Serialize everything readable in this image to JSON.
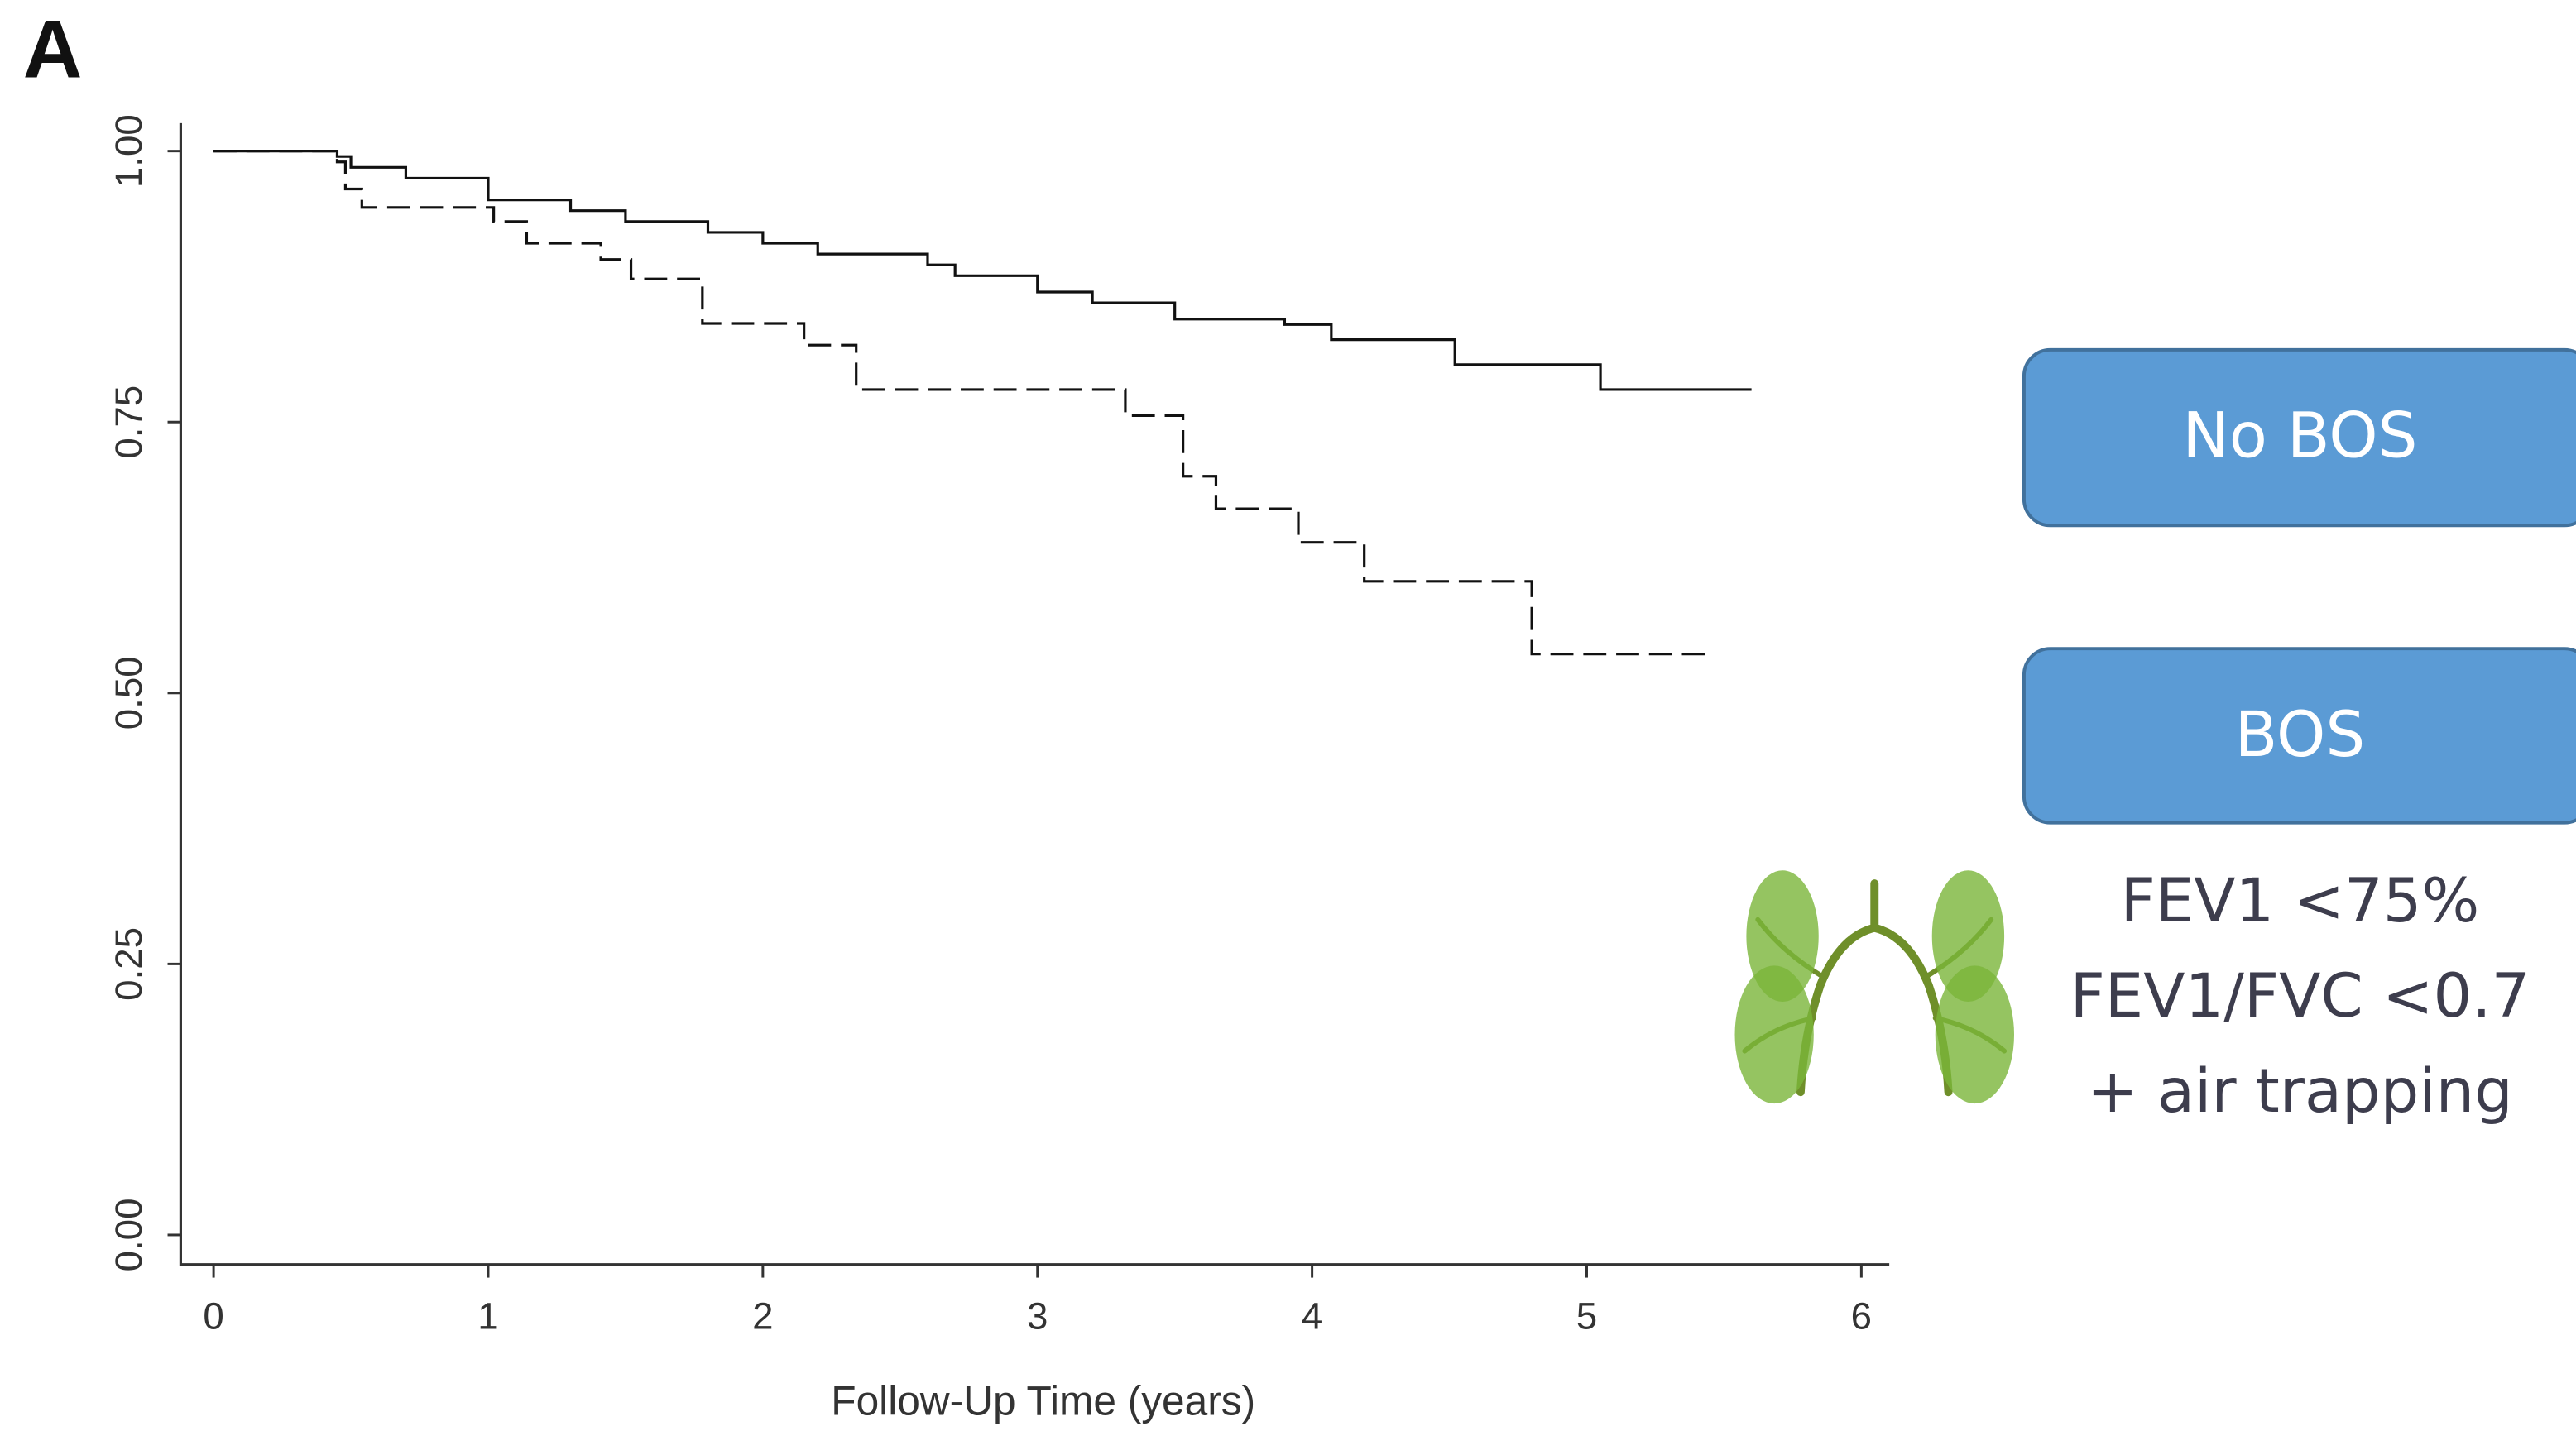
{
  "chart_data": {
    "type": "line",
    "step": "post",
    "panel_label": "A",
    "xlabel": "Follow-Up Time (years)",
    "xlim": [
      0,
      6
    ],
    "xticks": [
      0,
      1,
      2,
      3,
      4,
      5,
      6
    ],
    "ylim": [
      0,
      1
    ],
    "yticks": [
      {
        "value": 0,
        "label": "0.00"
      },
      {
        "value": 0.25,
        "label": "0.25"
      },
      {
        "value": 0.5,
        "label": "0.50"
      },
      {
        "value": 0.75,
        "label": "0.75"
      },
      {
        "value": 1,
        "label": "1.00"
      }
    ],
    "series": [
      {
        "name": "No BOS",
        "color": "#111111",
        "dash": false,
        "x": [
          0,
          0.45,
          0.5,
          0.7,
          1.0,
          1.3,
          1.5,
          1.8,
          2.0,
          2.2,
          2.6,
          2.7,
          3.0,
          3.2,
          3.5,
          3.9,
          4.07,
          4.52,
          5.05,
          5.6
        ],
        "values": [
          1.0,
          0.995,
          0.985,
          0.975,
          0.955,
          0.945,
          0.935,
          0.925,
          0.915,
          0.905,
          0.895,
          0.885,
          0.87,
          0.86,
          0.845,
          0.84,
          0.826,
          0.803,
          0.78,
          0.78
        ]
      },
      {
        "name": "BOS",
        "color": "#111111",
        "dash": true,
        "x": [
          0,
          0.45,
          0.48,
          0.54,
          1.02,
          1.14,
          1.41,
          1.52,
          1.78,
          2.15,
          2.34,
          3.32,
          3.53,
          3.65,
          3.95,
          4.19,
          4.8,
          5.46
        ],
        "values": [
          1.0,
          0.99,
          0.965,
          0.948,
          0.935,
          0.915,
          0.9,
          0.882,
          0.841,
          0.821,
          0.78,
          0.756,
          0.7,
          0.67,
          0.639,
          0.603,
          0.536,
          0.536
        ]
      }
    ],
    "criteria": [
      "FEV1 <75%",
      "FEV1/FVC <0.7",
      "+ air trapping"
    ]
  }
}
